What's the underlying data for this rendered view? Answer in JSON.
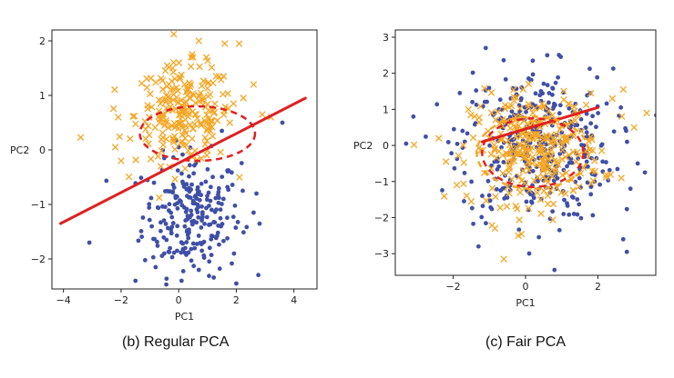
{
  "chart_data": [
    {
      "type": "scatter",
      "caption": "(b) Regular PCA",
      "xlabel": "PC1",
      "ylabel": "PC2",
      "xlim": [
        -4.4,
        4.8
      ],
      "ylim": [
        -2.55,
        2.2
      ],
      "xticks": [
        -4,
        -2,
        0,
        2,
        4
      ],
      "yticks": [
        -2,
        -1,
        0,
        1,
        2
      ],
      "xtick_labels": [
        "−4",
        "−2",
        "0",
        "2",
        "4"
      ],
      "ytick_labels": [
        "−2",
        "−1",
        "0",
        "1",
        "2"
      ],
      "grid": false,
      "colors": {
        "group_a": "#f5a623",
        "group_b": "#3f4fa8",
        "fit": "#e02020"
      },
      "series": [
        {
          "marker": "x",
          "color": "#f5a623",
          "center": [
            0.2,
            0.65
          ],
          "spread": [
            0.85,
            0.45
          ],
          "count": 230,
          "points": [
            [
              -3.4,
              0.23
            ],
            [
              -2.1,
              0.6
            ],
            [
              -2.2,
              0.05
            ],
            [
              -2.0,
              -0.2
            ],
            [
              2.1,
              1.95
            ],
            [
              1.6,
              1.95
            ],
            [
              0.7,
              2.0
            ],
            [
              0.5,
              1.7
            ],
            [
              -0.4,
              1.55
            ],
            [
              1.3,
              1.35
            ],
            [
              2.6,
              1.2
            ],
            [
              2.9,
              0.65
            ],
            [
              3.2,
              0.6
            ],
            [
              1.9,
              0.85
            ]
          ]
        },
        {
          "marker": "o",
          "color": "#3f4fa8",
          "center": [
            0.45,
            -1.2
          ],
          "spread": [
            0.85,
            0.55
          ],
          "count": 240,
          "points": [
            [
              -3.1,
              -1.7
            ],
            [
              -1.5,
              -2.4
            ],
            [
              -0.8,
              -2.15
            ],
            [
              0.7,
              -2.2
            ],
            [
              2.0,
              -2.45
            ],
            [
              0.1,
              -2.4
            ],
            [
              2.6,
              -1.15
            ],
            [
              2.7,
              -0.8
            ],
            [
              3.6,
              0.5
            ],
            [
              1.5,
              0.35
            ],
            [
              0.0,
              0.05
            ],
            [
              -0.5,
              -0.15
            ]
          ]
        },
        {
          "type": "line",
          "color": "#e02020",
          "points": [
            [
              -4.1,
              -1.35
            ],
            [
              4.4,
              0.95
            ]
          ]
        },
        {
          "type": "dashed-ellipse",
          "color": "#e02020",
          "center": [
            0.65,
            0.3
          ],
          "radii": [
            2.0,
            0.5
          ]
        }
      ]
    },
    {
      "type": "scatter",
      "caption": "(c) Fair PCA",
      "xlabel": "PC1",
      "ylabel": "PC2",
      "xlim": [
        -3.6,
        3.6
      ],
      "ylim": [
        -3.6,
        3.2
      ],
      "xticks": [
        -2,
        0,
        2
      ],
      "yticks": [
        -3,
        -2,
        -1,
        0,
        1,
        2,
        3
      ],
      "xtick_labels": [
        "−2",
        "0",
        "2"
      ],
      "ytick_labels": [
        "−3",
        "−2",
        "−1",
        "0",
        "1",
        "2",
        "3"
      ],
      "grid": false,
      "series": [
        {
          "marker": "x",
          "color": "#f5a623",
          "center": [
            0.3,
            -0.1
          ],
          "spread": [
            0.9,
            0.75
          ],
          "count": 300,
          "points": [
            [
              -1.9,
              -1.1
            ],
            [
              -2.2,
              -0.45
            ],
            [
              -1.5,
              -1.55
            ],
            [
              -0.6,
              -3.15
            ],
            [
              3.35,
              0.9
            ],
            [
              2.7,
              1.55
            ],
            [
              2.4,
              1.3
            ],
            [
              3.0,
              0.5
            ],
            [
              -0.2,
              -2.5
            ]
          ]
        },
        {
          "marker": "o",
          "color": "#3f4fa8",
          "center": [
            0.3,
            0.0
          ],
          "spread": [
            1.05,
            1.05
          ],
          "count": 380,
          "points": [
            [
              -3.3,
              0.05
            ],
            [
              -3.1,
              0.8
            ],
            [
              0.8,
              -3.45
            ],
            [
              2.8,
              -2.95
            ],
            [
              2.7,
              -2.6
            ],
            [
              0.6,
              2.5
            ],
            [
              -1.1,
              2.7
            ],
            [
              0.2,
              2.35
            ],
            [
              3.1,
              -0.5
            ],
            [
              3.3,
              -0.75
            ],
            [
              2.9,
              -1.2
            ],
            [
              -1.3,
              -2.8
            ]
          ]
        },
        {
          "type": "line",
          "color": "#e02020",
          "points": [
            [
              -1.2,
              0.1
            ],
            [
              2.0,
              1.05
            ]
          ]
        },
        {
          "type": "dashed-ellipse",
          "color": "#f5a623",
          "center": [
            0.2,
            -0.2
          ],
          "radii": [
            1.55,
            1.0
          ]
        },
        {
          "type": "dashed-ellipse",
          "color": "#e02020",
          "center": [
            0.2,
            -0.2
          ],
          "radii": [
            1.4,
            0.95
          ]
        }
      ]
    }
  ]
}
